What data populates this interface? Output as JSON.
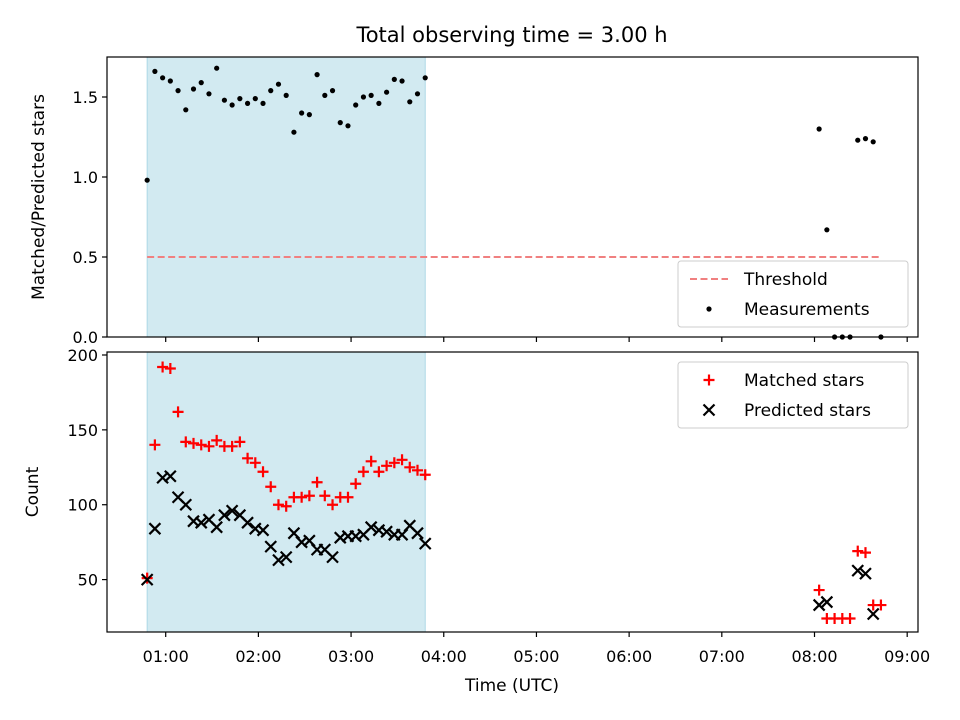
{
  "figure": {
    "title": "Total observing time = 3.00 h",
    "xlabel": "Time (UTC)",
    "x_tick_labels": [
      "01:00",
      "02:00",
      "03:00",
      "04:00",
      "05:00",
      "06:00",
      "07:00",
      "08:00",
      "09:00"
    ],
    "highlight_color": "#add8e6"
  },
  "chart_data": [
    {
      "type": "scatter",
      "ylabel": "Matched/Predicted stars",
      "xlim": [
        "00:22",
        "09:07"
      ],
      "ylim": [
        0,
        1.75
      ],
      "y_ticks": [
        "0.0",
        "0.5",
        "1.0",
        "1.5"
      ],
      "highlight_span": [
        "00:48",
        "03:48"
      ],
      "legend_position": "lower right",
      "threshold": {
        "name": "Threshold",
        "value": 0.5,
        "x_range": [
          "00:48",
          "08:43"
        ],
        "color": "#f08080",
        "style": "dashed"
      },
      "series": [
        {
          "name": "Measurements",
          "color": "#000000",
          "marker": "dot",
          "points": [
            [
              "00:48",
              0.98
            ],
            [
              "00:53",
              1.66
            ],
            [
              "00:58",
              1.62
            ],
            [
              "01:03",
              1.6
            ],
            [
              "01:08",
              1.54
            ],
            [
              "01:13",
              1.42
            ],
            [
              "01:18",
              1.55
            ],
            [
              "01:23",
              1.59
            ],
            [
              "01:28",
              1.52
            ],
            [
              "01:33",
              1.68
            ],
            [
              "01:38",
              1.48
            ],
            [
              "01:43",
              1.45
            ],
            [
              "01:48",
              1.49
            ],
            [
              "01:53",
              1.46
            ],
            [
              "01:58",
              1.49
            ],
            [
              "02:03",
              1.46
            ],
            [
              "02:08",
              1.54
            ],
            [
              "02:13",
              1.58
            ],
            [
              "02:18",
              1.51
            ],
            [
              "02:23",
              1.28
            ],
            [
              "02:28",
              1.4
            ],
            [
              "02:33",
              1.39
            ],
            [
              "02:38",
              1.64
            ],
            [
              "02:43",
              1.51
            ],
            [
              "02:48",
              1.54
            ],
            [
              "02:53",
              1.34
            ],
            [
              "02:58",
              1.32
            ],
            [
              "03:03",
              1.45
            ],
            [
              "03:08",
              1.5
            ],
            [
              "03:13",
              1.51
            ],
            [
              "03:18",
              1.46
            ],
            [
              "03:23",
              1.53
            ],
            [
              "03:28",
              1.61
            ],
            [
              "03:33",
              1.6
            ],
            [
              "03:38",
              1.47
            ],
            [
              "03:43",
              1.52
            ],
            [
              "03:48",
              1.62
            ],
            [
              "08:03",
              1.3
            ],
            [
              "08:08",
              0.67
            ],
            [
              "08:13",
              0.0
            ],
            [
              "08:18",
              0.0
            ],
            [
              "08:23",
              0.0
            ],
            [
              "08:28",
              1.23
            ],
            [
              "08:33",
              1.24
            ],
            [
              "08:38",
              1.22
            ],
            [
              "08:43",
              0.0
            ]
          ]
        }
      ]
    },
    {
      "type": "scatter",
      "ylabel": "Count",
      "xlim": [
        "00:22",
        "09:07"
      ],
      "ylim": [
        15,
        202
      ],
      "y_ticks": [
        "50",
        "100",
        "150",
        "200"
      ],
      "highlight_span": [
        "00:48",
        "03:48"
      ],
      "legend_position": "upper right",
      "series": [
        {
          "name": "Matched stars",
          "color": "#ff0000",
          "marker": "plus",
          "points": [
            [
              "00:48",
              51
            ],
            [
              "00:53",
              140
            ],
            [
              "00:58",
              192
            ],
            [
              "01:03",
              191
            ],
            [
              "01:08",
              162
            ],
            [
              "01:13",
              142
            ],
            [
              "01:18",
              141
            ],
            [
              "01:23",
              140
            ],
            [
              "01:28",
              139
            ],
            [
              "01:33",
              143
            ],
            [
              "01:38",
              139
            ],
            [
              "01:43",
              139
            ],
            [
              "01:48",
              142
            ],
            [
              "01:53",
              131
            ],
            [
              "01:58",
              128
            ],
            [
              "02:03",
              122
            ],
            [
              "02:08",
              112
            ],
            [
              "02:13",
              100
            ],
            [
              "02:18",
              99
            ],
            [
              "02:23",
              105
            ],
            [
              "02:28",
              105
            ],
            [
              "02:33",
              106
            ],
            [
              "02:38",
              115
            ],
            [
              "02:43",
              106
            ],
            [
              "02:48",
              100
            ],
            [
              "02:53",
              105
            ],
            [
              "02:58",
              105
            ],
            [
              "03:03",
              114
            ],
            [
              "03:08",
              122
            ],
            [
              "03:13",
              129
            ],
            [
              "03:18",
              122
            ],
            [
              "03:23",
              126
            ],
            [
              "03:28",
              128
            ],
            [
              "03:33",
              130
            ],
            [
              "03:38",
              125
            ],
            [
              "03:43",
              123
            ],
            [
              "03:48",
              120
            ],
            [
              "08:03",
              43
            ],
            [
              "08:08",
              24
            ],
            [
              "08:13",
              24
            ],
            [
              "08:18",
              24
            ],
            [
              "08:23",
              24
            ],
            [
              "08:28",
              69
            ],
            [
              "08:33",
              68
            ],
            [
              "08:38",
              33
            ],
            [
              "08:43",
              33
            ]
          ]
        },
        {
          "name": "Predicted stars",
          "color": "#000000",
          "marker": "x",
          "points": [
            [
              "00:48",
              50
            ],
            [
              "00:53",
              84
            ],
            [
              "00:58",
              118
            ],
            [
              "01:03",
              119
            ],
            [
              "01:08",
              105
            ],
            [
              "01:13",
              100
            ],
            [
              "01:18",
              89
            ],
            [
              "01:23",
              88
            ],
            [
              "01:28",
              90
            ],
            [
              "01:33",
              85
            ],
            [
              "01:38",
              93
            ],
            [
              "01:43",
              96
            ],
            [
              "01:48",
              93
            ],
            [
              "01:53",
              88
            ],
            [
              "01:58",
              84
            ],
            [
              "02:03",
              83
            ],
            [
              "02:08",
              72
            ],
            [
              "02:13",
              63
            ],
            [
              "02:18",
              65
            ],
            [
              "02:23",
              81
            ],
            [
              "02:28",
              75
            ],
            [
              "02:33",
              76
            ],
            [
              "02:38",
              70
            ],
            [
              "02:43",
              70
            ],
            [
              "02:48",
              65
            ],
            [
              "02:53",
              78
            ],
            [
              "02:58",
              79
            ],
            [
              "03:03",
              79
            ],
            [
              "03:08",
              80
            ],
            [
              "03:13",
              85
            ],
            [
              "03:18",
              83
            ],
            [
              "03:23",
              82
            ],
            [
              "03:28",
              80
            ],
            [
              "03:33",
              80
            ],
            [
              "03:38",
              86
            ],
            [
              "03:43",
              81
            ],
            [
              "03:48",
              74
            ],
            [
              "08:03",
              33
            ],
            [
              "08:08",
              35
            ],
            [
              "08:28",
              56
            ],
            [
              "08:33",
              54
            ],
            [
              "08:38",
              27
            ]
          ]
        }
      ]
    }
  ]
}
